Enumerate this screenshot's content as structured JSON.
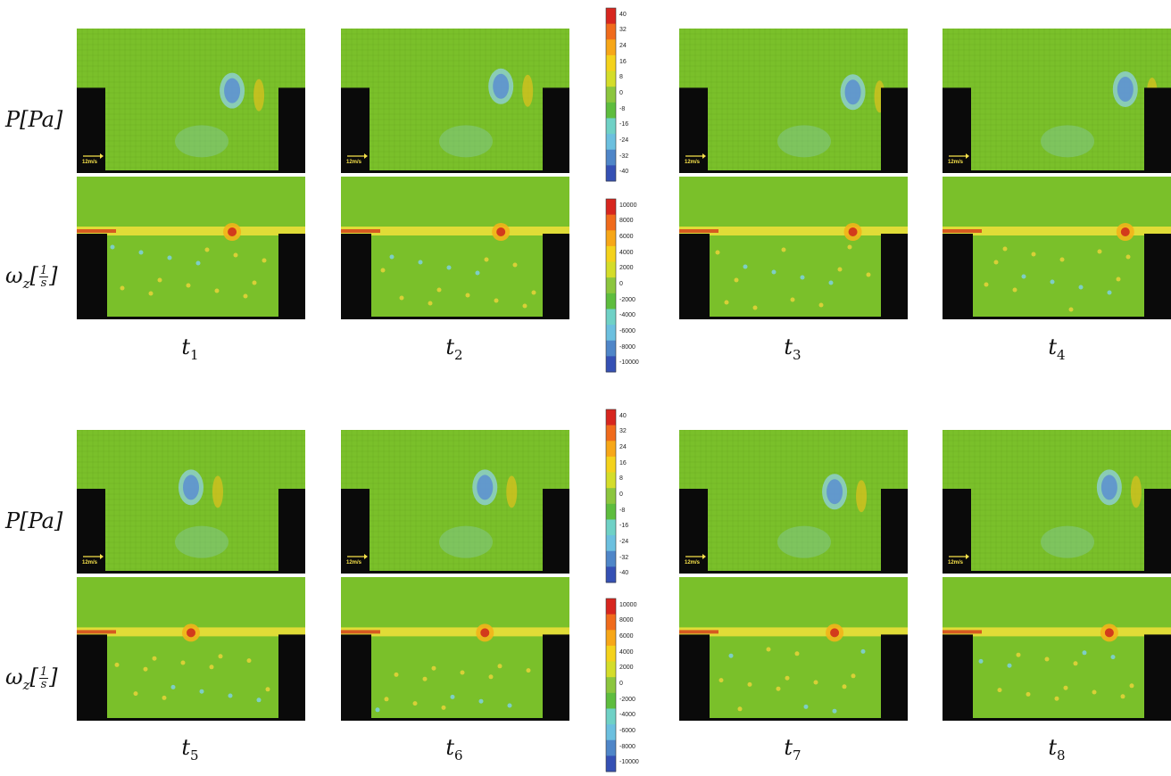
{
  "row_labels": {
    "pressure": {
      "main": "P[Pa]"
    },
    "vorticity": {
      "main": "ω",
      "sub": "z",
      "open": "[",
      "num": "1",
      "den": "s",
      "close": "]"
    }
  },
  "time_labels": [
    {
      "main": "t",
      "sub": "1"
    },
    {
      "main": "t",
      "sub": "2"
    },
    {
      "main": "t",
      "sub": "3"
    },
    {
      "main": "t",
      "sub": "4"
    },
    {
      "main": "t",
      "sub": "5"
    },
    {
      "main": "t",
      "sub": "6"
    },
    {
      "main": "t",
      "sub": "7"
    },
    {
      "main": "t",
      "sub": "8"
    }
  ],
  "velocity_scale_label": "12m/s",
  "pressure_colorbar": {
    "ticks": [
      "40",
      "32",
      "24",
      "16",
      "8",
      "0",
      "-8",
      "-16",
      "-24",
      "-32",
      "-40"
    ],
    "colors": [
      "#d7261f",
      "#f06b1c",
      "#f7a718",
      "#f4d21c",
      "#d4dd2a",
      "#8cc63e",
      "#5ebd3e",
      "#6fd1c6",
      "#6cc0df",
      "#4f86c8",
      "#3550b4"
    ]
  },
  "vorticity_colorbar": {
    "ticks": [
      "10000",
      "8000",
      "6000",
      "4000",
      "2000",
      "0",
      "-2000",
      "-4000",
      "-6000",
      "-8000",
      "-10000"
    ],
    "colors": [
      "#d7261f",
      "#f06b1c",
      "#f7a718",
      "#f4d21c",
      "#d4dd2a",
      "#8cc63e",
      "#5ebd3e",
      "#6fd1c6",
      "#6cc0df",
      "#4f86c8",
      "#3550b4"
    ]
  },
  "colors": {
    "field_green": "#7ac02a",
    "cavity_black": "#0a0a0a",
    "shear_yellow": "#f2e03a",
    "vortex_blue": "#5a8fd0",
    "hot_red": "#d23a1c"
  }
}
